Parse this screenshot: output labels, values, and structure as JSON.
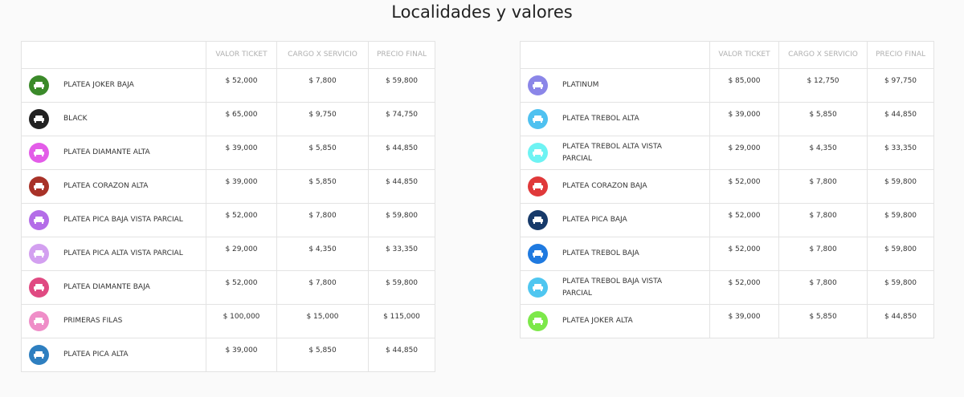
{
  "title": "Localidades y valores",
  "tables": [
    {
      "headers": [
        "VALOR TICKET",
        "CARGO X SERVICIO",
        "PRECIO FINAL"
      ],
      "rows": [
        {
          "color": "#3b8a2a",
          "name": "PLATEA JOKER BAJA",
          "valor": "$ 52,000",
          "cargo": "$ 7,800",
          "precio": "$ 59,800"
        },
        {
          "color": "#222222",
          "name": "BLACK",
          "valor": "$ 65,000",
          "cargo": "$ 9,750",
          "precio": "$ 74,750"
        },
        {
          "color": "#e35ce8",
          "name": "PLATEA DIAMANTE ALTA",
          "valor": "$ 39,000",
          "cargo": "$ 5,850",
          "precio": "$ 44,850"
        },
        {
          "color": "#a83228",
          "name": "PLATEA CORAZON ALTA",
          "valor": "$ 39,000",
          "cargo": "$ 5,850",
          "precio": "$ 44,850"
        },
        {
          "color": "#b46de8",
          "name": "PLATEA PICA BAJA VISTA PARCIAL",
          "valor": "$ 52,000",
          "cargo": "$ 7,800",
          "precio": "$ 59,800"
        },
        {
          "color": "#d3a0f0",
          "name": "PLATEA PICA ALTA VISTA PARCIAL",
          "valor": "$ 29,000",
          "cargo": "$ 4,350",
          "precio": "$ 33,350"
        },
        {
          "color": "#e04a82",
          "name": "PLATEA DIAMANTE BAJA",
          "valor": "$ 52,000",
          "cargo": "$ 7,800",
          "precio": "$ 59,800"
        },
        {
          "color": "#ef8ec8",
          "name": "PRIMERAS FILAS",
          "valor": "$ 100,000",
          "cargo": "$ 15,000",
          "precio": "$ 115,000"
        },
        {
          "color": "#2e7fc0",
          "name": "PLATEA PICA ALTA",
          "valor": "$ 39,000",
          "cargo": "$ 5,850",
          "precio": "$ 44,850"
        }
      ]
    },
    {
      "headers": [
        "VALOR TICKET",
        "CARGO X SERVICIO",
        "PRECIO FINAL"
      ],
      "rows": [
        {
          "color": "#8b86e8",
          "name": "PLATINUM",
          "valor": "$ 85,000",
          "cargo": "$ 12,750",
          "precio": "$ 97,750"
        },
        {
          "color": "#4fc1f0",
          "name": "PLATEA TREBOL ALTA",
          "valor": "$ 39,000",
          "cargo": "$ 5,850",
          "precio": "$ 44,850"
        },
        {
          "color": "#6ef3f3",
          "name": "PLATEA TREBOL ALTA VISTA PARCIAL",
          "valor": "$ 29,000",
          "cargo": "$ 4,350",
          "precio": "$ 33,350"
        },
        {
          "color": "#e0393a",
          "name": "PLATEA CORAZON BAJA",
          "valor": "$ 52,000",
          "cargo": "$ 7,800",
          "precio": "$ 59,800"
        },
        {
          "color": "#173a6a",
          "name": "PLATEA PICA BAJA",
          "valor": "$ 52,000",
          "cargo": "$ 7,800",
          "precio": "$ 59,800"
        },
        {
          "color": "#1f7ae0",
          "name": "PLATEA TREBOL BAJA",
          "valor": "$ 52,000",
          "cargo": "$ 7,800",
          "precio": "$ 59,800"
        },
        {
          "color": "#4fc6f0",
          "name": "PLATEA TREBOL BAJA VISTA PARCIAL",
          "valor": "$ 52,000",
          "cargo": "$ 7,800",
          "precio": "$ 59,800"
        },
        {
          "color": "#7de84a",
          "name": "PLATEA JOKER ALTA",
          "valor": "$ 39,000",
          "cargo": "$ 5,850",
          "precio": "$ 44,850"
        }
      ]
    }
  ]
}
